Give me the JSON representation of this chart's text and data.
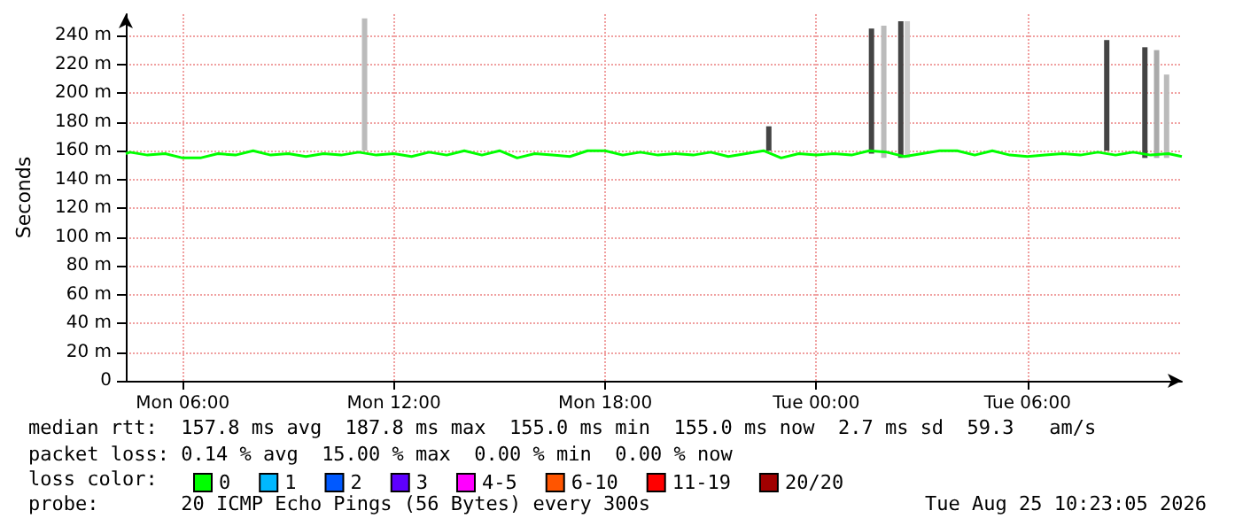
{
  "chart_data": {
    "type": "line",
    "ylabel": "Seconds",
    "xlim": [
      "2026-08-24T04:23",
      "2026-08-25T10:23"
    ],
    "xticks": [
      {
        "value": "2026-08-24T06:00",
        "label": "Mon 06:00"
      },
      {
        "value": "2026-08-24T12:00",
        "label": "Mon 12:00"
      },
      {
        "value": "2026-08-24T18:00",
        "label": "Mon 18:00"
      },
      {
        "value": "2026-08-25T00:00",
        "label": "Tue 00:00"
      },
      {
        "value": "2026-08-25T06:00",
        "label": "Tue 06:00"
      }
    ],
    "ylim": [
      0,
      255
    ],
    "yticks": [
      0,
      {
        "value": 20,
        "label": "20 m"
      },
      {
        "value": 40,
        "label": "40 m"
      },
      {
        "value": 60,
        "label": "60 m"
      },
      {
        "value": 80,
        "label": "80 m"
      },
      {
        "value": 100,
        "label": "100 m"
      },
      {
        "value": 120,
        "label": "120 m"
      },
      {
        "value": 140,
        "label": "140 m"
      },
      {
        "value": 160,
        "label": "160 m"
      },
      {
        "value": 180,
        "label": "180 m"
      },
      {
        "value": 200,
        "label": "200 m"
      },
      {
        "value": 220,
        "label": "220 m"
      },
      {
        "value": 240,
        "label": "240 m"
      }
    ],
    "grid": true,
    "legend": "bottom left",
    "legend_title": "loss color:",
    "annotations": [
      "median rtt:  157.8 ms avg  187.8 ms max  155.0 ms min  155.0 ms now  2.7 ms sd  59.3   am/s",
      "packet loss: 0.14 % avg  15.00 % max  0.00 % min  0.00 % now",
      "probe:       20 ICMP Echo Pings (56 Bytes) every 300s",
      "Tue Aug 25 10:23:05 2026"
    ],
    "series": [
      {
        "type": "bar",
        "base": [
          160,
          160,
          158,
          155,
          155,
          155,
          160,
          155,
          155,
          155
        ],
        "x": [
          "2026-08-24T11:10",
          "2026-08-24T22:39",
          "2026-08-25T01:34",
          "2026-08-25T01:55",
          "2026-08-25T02:24",
          "2026-08-25T02:35",
          "2026-08-25T08:15",
          "2026-08-25T09:20",
          "2026-08-25T09:40",
          "2026-08-25T09:57"
        ],
        "values": [
          92,
          17,
          87,
          92,
          95,
          95,
          77,
          77,
          75,
          58
        ],
        "colors": [
          "#bbbbbb",
          "#444444",
          "#444444",
          "#bbbbbb",
          "#444444",
          "#cccccc",
          "#444444",
          "#444444",
          "#aaaaaa",
          "#bbbbbb"
        ]
      },
      {
        "name": "0",
        "color": "#00ff00",
        "x": [
          "2026-08-24T04:23",
          "2026-08-24T04:30",
          "2026-08-24T05:00",
          "2026-08-24T05:30",
          "2026-08-24T06:00",
          "2026-08-24T06:30",
          "2026-08-24T07:00",
          "2026-08-24T07:30",
          "2026-08-24T08:00",
          "2026-08-24T08:30",
          "2026-08-24T09:00",
          "2026-08-24T09:30",
          "2026-08-24T10:00",
          "2026-08-24T10:30",
          "2026-08-24T11:00",
          "2026-08-24T11:30",
          "2026-08-24T12:00",
          "2026-08-24T12:30",
          "2026-08-24T13:00",
          "2026-08-24T13:30",
          "2026-08-24T14:00",
          "2026-08-24T14:30",
          "2026-08-24T15:00",
          "2026-08-24T15:30",
          "2026-08-24T16:00",
          "2026-08-24T16:30",
          "2026-08-24T17:00",
          "2026-08-24T17:30",
          "2026-08-24T18:00",
          "2026-08-24T18:30",
          "2026-08-24T19:00",
          "2026-08-24T19:30",
          "2026-08-24T20:00",
          "2026-08-24T20:30",
          "2026-08-24T21:00",
          "2026-08-24T21:30",
          "2026-08-24T22:00",
          "2026-08-24T22:30",
          "2026-08-24T23:00",
          "2026-08-24T23:30",
          "2026-08-25T00:00",
          "2026-08-25T00:30",
          "2026-08-25T01:00",
          "2026-08-25T01:30",
          "2026-08-25T02:00",
          "2026-08-25T02:30",
          "2026-08-25T03:00",
          "2026-08-25T03:30",
          "2026-08-25T04:00",
          "2026-08-25T04:30",
          "2026-08-25T05:00",
          "2026-08-25T05:30",
          "2026-08-25T06:00",
          "2026-08-25T06:30",
          "2026-08-25T07:00",
          "2026-08-25T07:30",
          "2026-08-25T08:00",
          "2026-08-25T08:30",
          "2026-08-25T09:00",
          "2026-08-25T09:30",
          "2026-08-25T10:00",
          "2026-08-25T10:23"
        ],
        "values": [
          158,
          159,
          157,
          158,
          155,
          155,
          158,
          157,
          160,
          157,
          158,
          156,
          158,
          157,
          159,
          157,
          158,
          156,
          159,
          157,
          160,
          157,
          160,
          155,
          158,
          157,
          156,
          160,
          160,
          157,
          159,
          157,
          158,
          157,
          159,
          156,
          158,
          160,
          155,
          158,
          157,
          158,
          157,
          160,
          159,
          156,
          158,
          160,
          160,
          157,
          160,
          157,
          156,
          157,
          158,
          157,
          159,
          157,
          159,
          157,
          158,
          156
        ]
      },
      {
        "name": "1",
        "color": "#00b8ff"
      },
      {
        "name": "2",
        "color": "#0059ff"
      },
      {
        "name": "3",
        "color": "#5e00ff"
      },
      {
        "name": "4-5",
        "color": "#ff00ff"
      },
      {
        "name": "6-10",
        "color": "#ff5500"
      },
      {
        "name": "11-19",
        "color": "#ff0000"
      },
      {
        "name": "20/20",
        "color": "#a10000"
      }
    ]
  }
}
